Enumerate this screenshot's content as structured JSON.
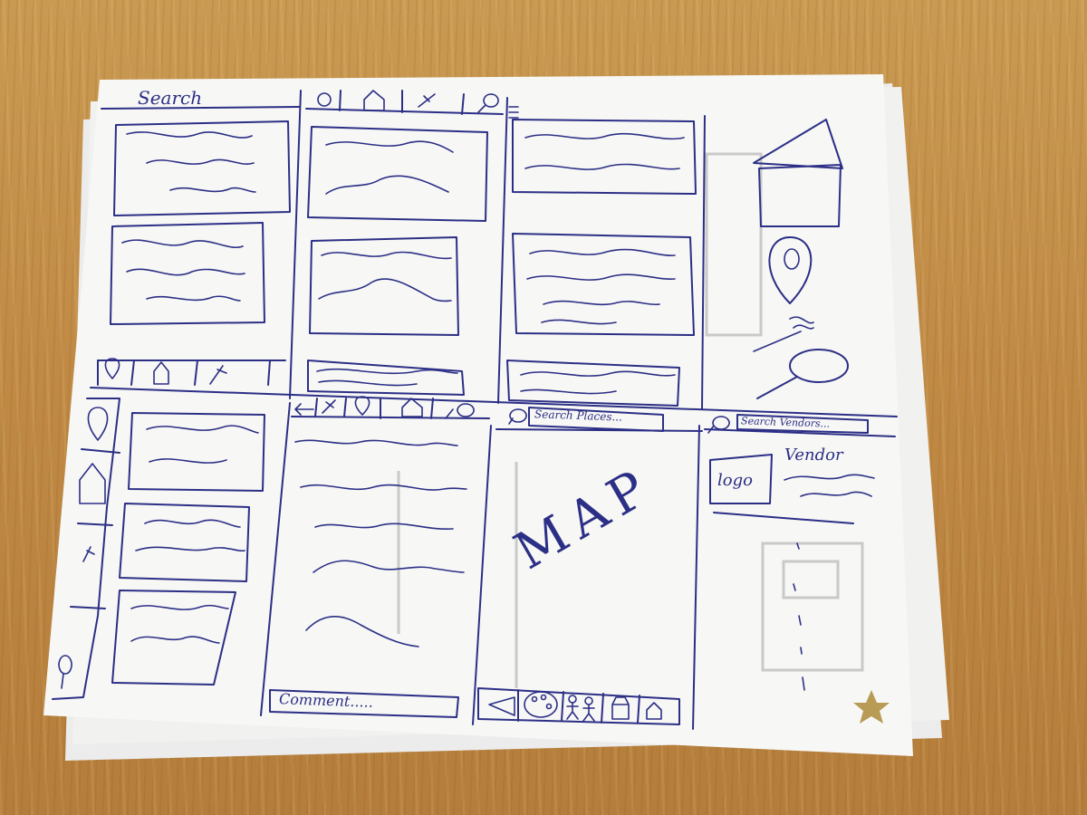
{
  "sketch": {
    "search_heading": "Search",
    "search_places_placeholder": "Search Places...",
    "search_vendors_placeholder": "Search Vendors...",
    "comment_placeholder": "Comment.....",
    "map_label": "MAP",
    "vendor_heading": "Vendor",
    "logo_label": "logo"
  },
  "colors": {
    "ink": "#2c2f86",
    "paper": "#f7f7f5",
    "table_wood": "#c08a45",
    "star": "#b89b55"
  },
  "icons": [
    "location-pin-icon",
    "home-icon",
    "pen-icon",
    "comment-icon",
    "menu-icon",
    "back-arrow-icon",
    "palette-icon",
    "people-icon",
    "shop-icon",
    "star-sticker"
  ]
}
